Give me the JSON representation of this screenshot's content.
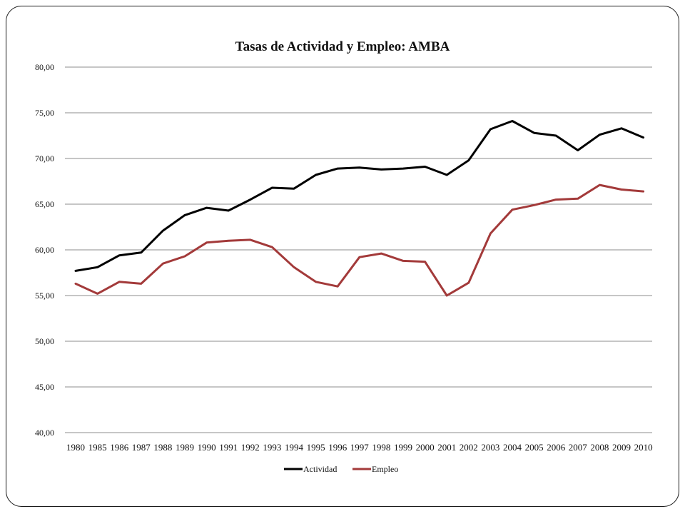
{
  "chart_data": {
    "type": "line",
    "title": "Tasas de Actividad y Empleo: AMBA",
    "xlabel": "",
    "ylabel": "",
    "ylim": [
      40,
      80
    ],
    "yticks": [
      "40,00",
      "45,00",
      "50,00",
      "55,00",
      "60,00",
      "65,00",
      "70,00",
      "75,00",
      "80,00"
    ],
    "grid": true,
    "legend_position": "bottom",
    "categories": [
      "1980",
      "1985",
      "1986",
      "1987",
      "1988",
      "1989",
      "1990",
      "1991",
      "1992",
      "1993",
      "1994",
      "1995",
      "1996",
      "1997",
      "1998",
      "1999",
      "2000",
      "2001",
      "2002",
      "2003",
      "2004",
      "2005",
      "2006",
      "2007",
      "2008",
      "2009",
      "2010"
    ],
    "series": [
      {
        "name": "Actividad",
        "color": "#000000",
        "values": [
          57.7,
          58.1,
          59.4,
          59.7,
          62.1,
          63.8,
          64.6,
          64.3,
          65.5,
          66.8,
          66.7,
          68.2,
          68.9,
          69.0,
          68.8,
          68.9,
          69.1,
          68.2,
          69.8,
          73.2,
          74.1,
          72.8,
          72.5,
          70.9,
          72.6,
          73.3,
          72.3
        ]
      },
      {
        "name": "Empleo",
        "color": "#a33a3a",
        "values": [
          56.3,
          55.2,
          56.5,
          56.3,
          58.5,
          59.3,
          60.8,
          61.0,
          61.1,
          60.3,
          58.1,
          56.5,
          56.0,
          59.2,
          59.6,
          58.8,
          58.7,
          55.0,
          56.4,
          61.8,
          64.4,
          64.9,
          65.5,
          65.6,
          67.1,
          66.6,
          66.4
        ]
      }
    ]
  }
}
